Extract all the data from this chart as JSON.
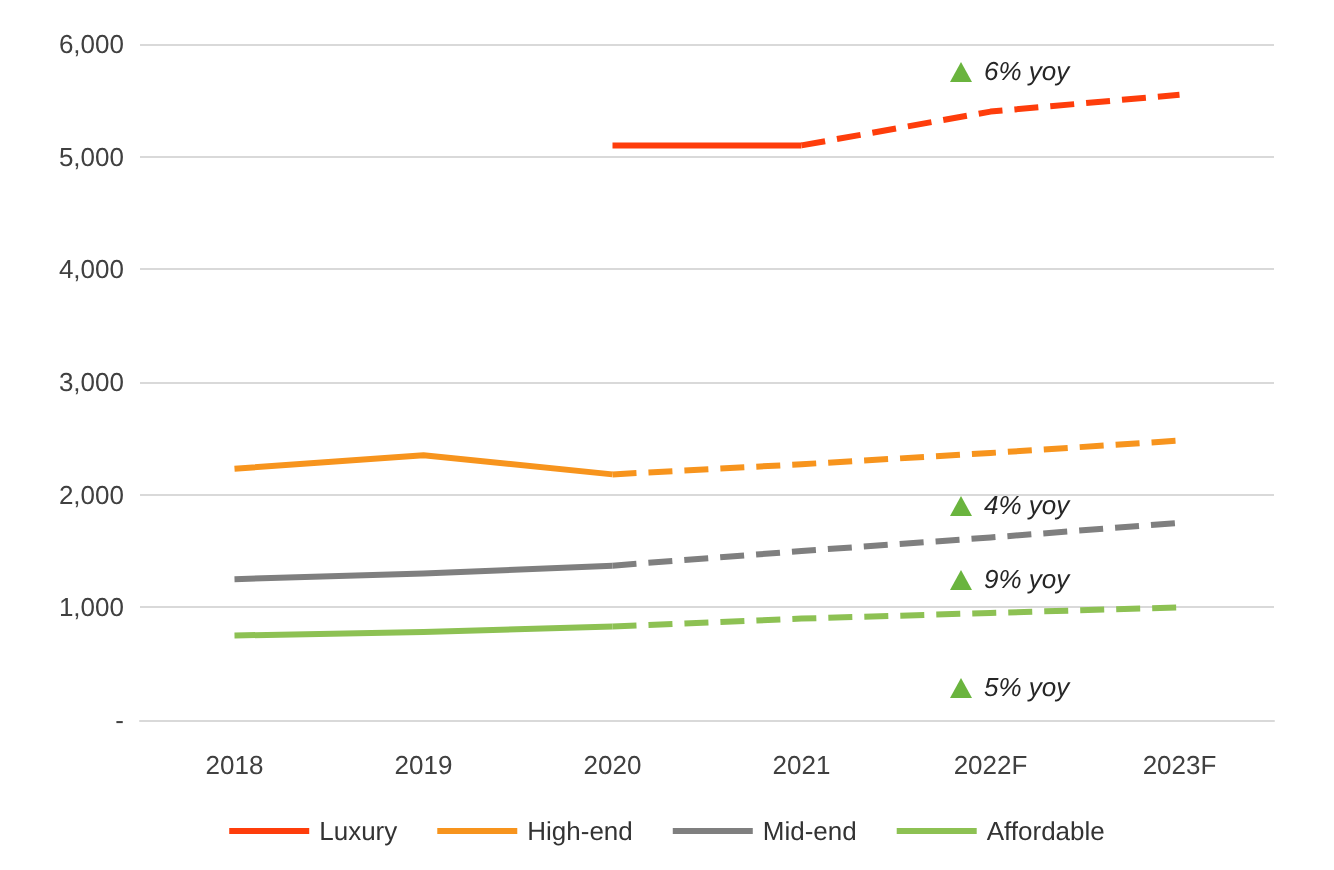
{
  "chart_data": {
    "type": "line",
    "categories": [
      "2018",
      "2019",
      "2020",
      "2021",
      "2022F",
      "2023F"
    ],
    "series": [
      {
        "name": "Luxury",
        "color": "#fe3d0b",
        "line_style": "solid",
        "values": [
          null,
          null,
          5100,
          5100,
          null,
          null
        ]
      },
      {
        "color": "#fe3d0b",
        "line_style": "dashed",
        "values": [
          null,
          null,
          null,
          5100,
          5400,
          5550
        ]
      },
      {
        "name": "High-end",
        "color": "#f7941d",
        "line_style": "solid",
        "values": [
          2230,
          2350,
          2180,
          null,
          null,
          null
        ]
      },
      {
        "color": "#f7941d",
        "line_style": "dashed",
        "values": [
          null,
          null,
          2180,
          2270,
          2370,
          2480
        ]
      },
      {
        "name": "Mid-end",
        "color": "#7f7f7f",
        "line_style": "solid",
        "values": [
          1250,
          1300,
          1370,
          null,
          null,
          null
        ]
      },
      {
        "color": "#7f7f7f",
        "line_style": "dashed",
        "values": [
          null,
          null,
          1370,
          1500,
          1620,
          1750
        ]
      },
      {
        "name": "Affordable",
        "color": "#8dc153",
        "line_style": "solid",
        "values": [
          750,
          780,
          830,
          null,
          null,
          null
        ]
      },
      {
        "color": "#8dc153",
        "line_style": "dashed",
        "values": [
          null,
          null,
          830,
          900,
          950,
          1000
        ]
      }
    ],
    "ylim": [
      0,
      6000
    ],
    "yticks": [
      {
        "value": 0,
        "label": "-"
      },
      {
        "value": 1000,
        "label": "1,000"
      },
      {
        "value": 2000,
        "label": "2,000"
      },
      {
        "value": 3000,
        "label": "3,000"
      },
      {
        "value": 4000,
        "label": "4,000"
      },
      {
        "value": 5000,
        "label": "5,000"
      },
      {
        "value": 6000,
        "label": "6,000"
      }
    ],
    "grid": "y",
    "legend": "bottom",
    "marker": "none",
    "annotations": [
      "6% yoy",
      "4% yoy",
      "9% yoy",
      "5% yoy"
    ]
  }
}
